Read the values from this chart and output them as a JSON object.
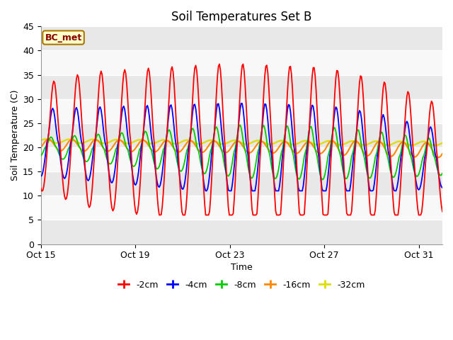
{
  "title": "Soil Temperatures Set B",
  "xlabel": "Time",
  "ylabel": "Soil Temperature (C)",
  "ylim": [
    0,
    45
  ],
  "yticks": [
    0,
    5,
    10,
    15,
    20,
    25,
    30,
    35,
    40,
    45
  ],
  "x_tick_labels": [
    "Oct 15",
    "Oct 19",
    "Oct 23",
    "Oct 27",
    "Oct 31"
  ],
  "x_tick_positions": [
    0,
    4,
    8,
    12,
    16
  ],
  "colors": {
    "-2cm": "#ff0000",
    "-4cm": "#0000ff",
    "-8cm": "#00cc00",
    "-16cm": "#ff8800",
    "-32cm": "#dddd00"
  },
  "legend_labels": [
    "-2cm",
    "-4cm",
    "-8cm",
    "-16cm",
    "-32cm"
  ],
  "annotation_text": "BC_met",
  "annotation_bg": "#ffffcc",
  "annotation_border": "#aa7700",
  "annotation_text_color": "#880000",
  "background_color": "#f0f0f0",
  "plot_bg_color_light": "#f8f8f8",
  "plot_bg_color_dark": "#e8e8e8",
  "grid_color": "#cccccc",
  "figsize": [
    6.4,
    4.8
  ],
  "dpi": 100
}
